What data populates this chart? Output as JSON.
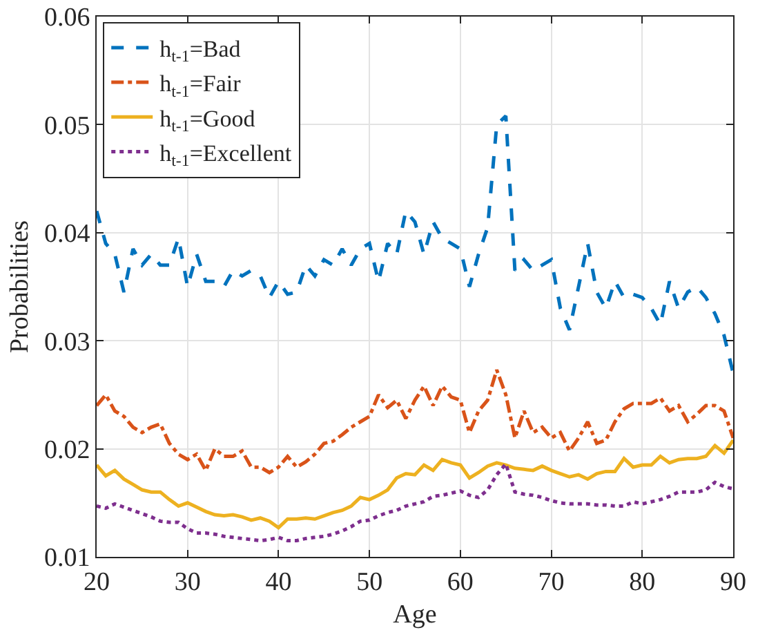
{
  "chart_data": {
    "type": "line",
    "xlabel": "Age",
    "ylabel": "Probabilities",
    "x": [
      20,
      21,
      22,
      23,
      24,
      25,
      26,
      27,
      28,
      29,
      30,
      31,
      32,
      33,
      34,
      35,
      36,
      37,
      38,
      39,
      40,
      41,
      42,
      43,
      44,
      45,
      46,
      47,
      48,
      49,
      50,
      51,
      52,
      53,
      54,
      55,
      56,
      57,
      58,
      59,
      60,
      61,
      62,
      63,
      64,
      65,
      66,
      67,
      68,
      69,
      70,
      71,
      72,
      73,
      74,
      75,
      76,
      77,
      78,
      79,
      80,
      81,
      82,
      83,
      84,
      85,
      86,
      87,
      88,
      89,
      90
    ],
    "xlim": [
      20,
      90
    ],
    "xticks": [
      20,
      30,
      40,
      50,
      60,
      70,
      80,
      90
    ],
    "ylim": [
      0.01,
      0.06
    ],
    "yticks": [
      0.01,
      0.02,
      0.03,
      0.04,
      0.05,
      0.06
    ],
    "grid": true,
    "legend": "top left",
    "marker": "none",
    "series": [
      {
        "name": "h$_{t-1}$=Bad",
        "color": "#0072bd",
        "line_style": "dashed",
        "values": [
          0.042,
          0.039,
          0.038,
          0.0345,
          0.0385,
          0.037,
          0.038,
          0.037,
          0.037,
          0.0395,
          0.035,
          0.038,
          0.0355,
          0.0355,
          0.035,
          0.0365,
          0.036,
          0.0365,
          0.036,
          0.034,
          0.0355,
          0.0343,
          0.0345,
          0.037,
          0.036,
          0.0375,
          0.037,
          0.0385,
          0.037,
          0.0385,
          0.039,
          0.0355,
          0.039,
          0.038,
          0.042,
          0.041,
          0.038,
          0.041,
          0.0395,
          0.039,
          0.0385,
          0.035,
          0.038,
          0.0405,
          0.05,
          0.0508,
          0.0365,
          0.0375,
          0.0365,
          0.037,
          0.0375,
          0.033,
          0.031,
          0.035,
          0.039,
          0.0345,
          0.033,
          0.0355,
          0.034,
          0.0343,
          0.034,
          0.033,
          0.0315,
          0.0355,
          0.033,
          0.0345,
          0.035,
          0.034,
          0.0325,
          0.0305,
          0.027
        ]
      },
      {
        "name": "h$_{t-1}$=Fair",
        "color": "#d95319",
        "line_style": "dashdot",
        "values": [
          0.024,
          0.025,
          0.0235,
          0.023,
          0.022,
          0.0215,
          0.022,
          0.0223,
          0.0205,
          0.0195,
          0.019,
          0.0195,
          0.018,
          0.02,
          0.0193,
          0.0193,
          0.0198,
          0.0183,
          0.0183,
          0.0178,
          0.0183,
          0.0193,
          0.0183,
          0.0188,
          0.0195,
          0.0205,
          0.0207,
          0.0213,
          0.022,
          0.0225,
          0.023,
          0.025,
          0.0238,
          0.0245,
          0.0228,
          0.0245,
          0.0258,
          0.024,
          0.0258,
          0.0248,
          0.0245,
          0.0215,
          0.0235,
          0.0245,
          0.0273,
          0.025,
          0.021,
          0.0235,
          0.0215,
          0.022,
          0.021,
          0.0215,
          0.0198,
          0.021,
          0.0225,
          0.0205,
          0.0208,
          0.0225,
          0.0237,
          0.0242,
          0.0242,
          0.0242,
          0.0247,
          0.0235,
          0.024,
          0.0225,
          0.0232,
          0.024,
          0.024,
          0.0235,
          0.021
        ]
      },
      {
        "name": "h$_{t-1}$=Good",
        "color": "#edb120",
        "line_style": "solid",
        "values": [
          0.0185,
          0.0175,
          0.018,
          0.0172,
          0.0167,
          0.0162,
          0.016,
          0.016,
          0.0153,
          0.0147,
          0.015,
          0.0146,
          0.0142,
          0.0139,
          0.0138,
          0.0139,
          0.0137,
          0.0134,
          0.0136,
          0.0133,
          0.0127,
          0.0135,
          0.0135,
          0.0136,
          0.0135,
          0.0138,
          0.0141,
          0.0143,
          0.0147,
          0.0155,
          0.0153,
          0.0157,
          0.0162,
          0.0173,
          0.0177,
          0.0176,
          0.0185,
          0.018,
          0.019,
          0.0187,
          0.0185,
          0.0173,
          0.0178,
          0.0184,
          0.0187,
          0.0185,
          0.0182,
          0.0181,
          0.018,
          0.0184,
          0.018,
          0.0177,
          0.0174,
          0.0176,
          0.0172,
          0.0177,
          0.0179,
          0.0179,
          0.0191,
          0.0183,
          0.0185,
          0.0185,
          0.0193,
          0.0187,
          0.019,
          0.0191,
          0.0191,
          0.0193,
          0.0203,
          0.0196,
          0.0208
        ]
      },
      {
        "name": "h$_{t-1}$=Excellent",
        "color": "#7e2f8e",
        "line_style": "dotted",
        "values": [
          0.0147,
          0.0145,
          0.0149,
          0.0146,
          0.0143,
          0.014,
          0.0137,
          0.0133,
          0.0132,
          0.0132,
          0.0126,
          0.0122,
          0.0122,
          0.0121,
          0.0119,
          0.0118,
          0.0117,
          0.0116,
          0.0115,
          0.0116,
          0.0118,
          0.0115,
          0.0115,
          0.0117,
          0.0118,
          0.0119,
          0.0121,
          0.0124,
          0.0128,
          0.0133,
          0.0134,
          0.0138,
          0.0141,
          0.0143,
          0.0147,
          0.0149,
          0.0151,
          0.0156,
          0.0157,
          0.0159,
          0.0161,
          0.0157,
          0.0155,
          0.0162,
          0.0176,
          0.0186,
          0.016,
          0.0158,
          0.0157,
          0.0155,
          0.0152,
          0.015,
          0.0149,
          0.0149,
          0.0149,
          0.0148,
          0.0148,
          0.0147,
          0.0147,
          0.0151,
          0.0149,
          0.0151,
          0.0153,
          0.0156,
          0.016,
          0.016,
          0.016,
          0.0162,
          0.0169,
          0.0165,
          0.0163
        ]
      }
    ]
  }
}
